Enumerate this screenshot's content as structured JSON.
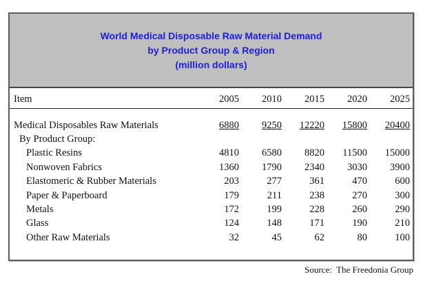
{
  "colors": {
    "title_blue": "#1e1ed8",
    "header_band_gray": "#bfbfbf"
  },
  "title": {
    "line1": "World Medical Disposable Raw Material Demand",
    "line2": "by Product Group & Region",
    "line3": "(million dollars)"
  },
  "table": {
    "item_header": "Item",
    "years": [
      "2005",
      "2010",
      "2015",
      "2020",
      "2025"
    ],
    "rows": [
      {
        "label": "Medical Disposables Raw Materials",
        "values": [
          "6880",
          "9250",
          "12220",
          "15800",
          "20400"
        ]
      },
      {
        "label": "By Product Group:",
        "values": [
          "",
          "",
          "",
          "",
          ""
        ]
      },
      {
        "label": "Plastic Resins",
        "values": [
          "4810",
          "6580",
          "8820",
          "11500",
          "15000"
        ]
      },
      {
        "label": "Nonwoven Fabrics",
        "values": [
          "1360",
          "1790",
          "2340",
          "3030",
          "3900"
        ]
      },
      {
        "label": "Elastomeric & Rubber Materials",
        "values": [
          "203",
          "277",
          "361",
          "470",
          "600"
        ]
      },
      {
        "label": "Paper & Paperboard",
        "values": [
          "179",
          "211",
          "238",
          "270",
          "300"
        ]
      },
      {
        "label": "Metals",
        "values": [
          "172",
          "199",
          "228",
          "260",
          "290"
        ]
      },
      {
        "label": "Glass",
        "values": [
          "124",
          "148",
          "171",
          "190",
          "210"
        ]
      },
      {
        "label": "Other Raw Materials",
        "values": [
          "32",
          "45",
          "62",
          "80",
          "100"
        ]
      }
    ]
  },
  "source": "Source:  The Freedonia Group",
  "chart_data": {
    "type": "table",
    "title": "World Medical Disposable Raw Material Demand by Product Group & Region (million dollars)",
    "columns": [
      "Item",
      "2005",
      "2010",
      "2015",
      "2020",
      "2025"
    ],
    "rows": [
      {
        "item": "Medical Disposables Raw Materials",
        "total": true,
        "values": [
          6880,
          9250,
          12220,
          15800,
          20400
        ]
      },
      {
        "item": "Plastic Resins",
        "group": "By Product Group",
        "values": [
          4810,
          6580,
          8820,
          11500,
          15000
        ]
      },
      {
        "item": "Nonwoven Fabrics",
        "group": "By Product Group",
        "values": [
          1360,
          1790,
          2340,
          3030,
          3900
        ]
      },
      {
        "item": "Elastomeric & Rubber Materials",
        "group": "By Product Group",
        "values": [
          203,
          277,
          361,
          470,
          600
        ]
      },
      {
        "item": "Paper & Paperboard",
        "group": "By Product Group",
        "values": [
          179,
          211,
          238,
          270,
          300
        ]
      },
      {
        "item": "Metals",
        "group": "By Product Group",
        "values": [
          172,
          199,
          228,
          260,
          290
        ]
      },
      {
        "item": "Glass",
        "group": "By Product Group",
        "values": [
          124,
          148,
          171,
          190,
          210
        ]
      },
      {
        "item": "Other Raw Materials",
        "group": "By Product Group",
        "values": [
          32,
          45,
          62,
          80,
          100
        ]
      }
    ],
    "source": "The Freedonia Group"
  }
}
